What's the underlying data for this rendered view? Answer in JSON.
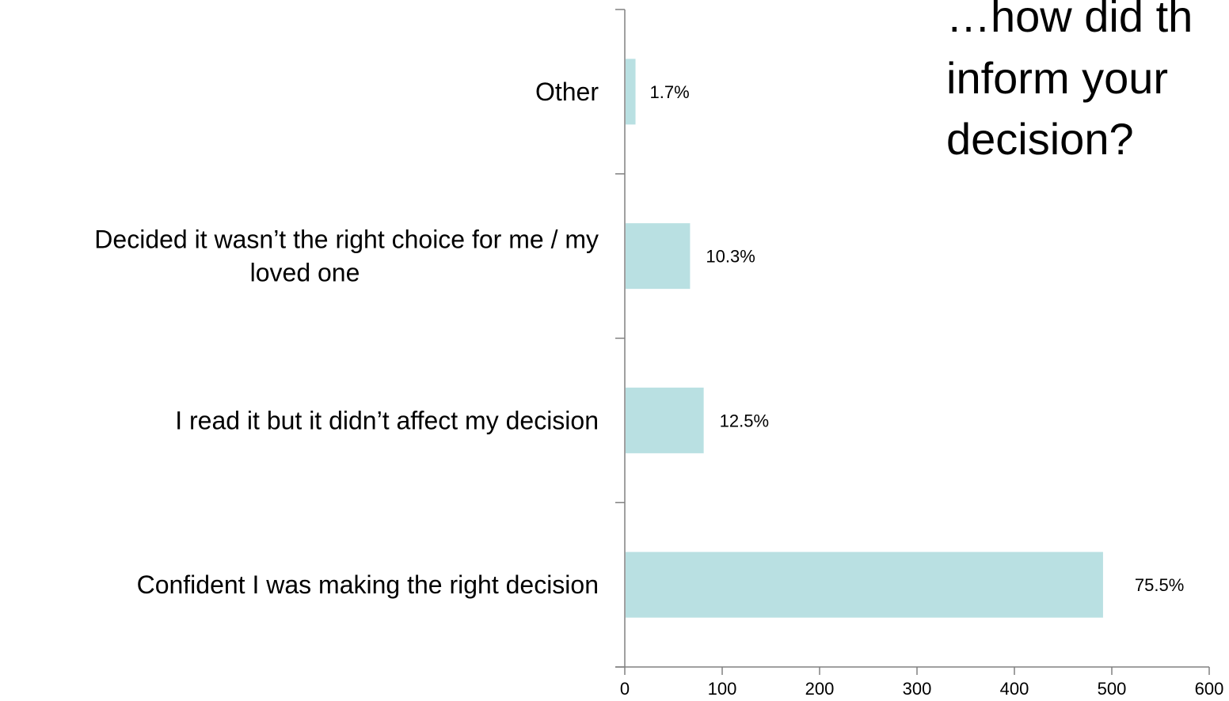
{
  "chart_data": {
    "type": "bar",
    "orientation": "horizontal",
    "title_lines": [
      "…how did th",
      "inform your",
      "decision?"
    ],
    "categories": [
      [
        "Confident I was making the right decision"
      ],
      [
        "I read it but it didn’t affect my decision"
      ],
      [
        "Decided it wasn’t the right choice for me / my",
        "loved one"
      ],
      [
        "Other"
      ]
    ],
    "values": [
      491,
      81,
      67,
      11
    ],
    "data_labels": [
      "75.5%",
      "12.5%",
      "10.3%",
      "1.7%"
    ],
    "xlim": [
      0,
      600
    ],
    "x_ticks": [
      "0",
      "100",
      "200",
      "300",
      "400",
      "500",
      "600"
    ],
    "xlabel": "",
    "ylabel": "",
    "grid": false,
    "legend": "none",
    "bar_color": "#b9e0e2",
    "axis_color": "#808080"
  }
}
